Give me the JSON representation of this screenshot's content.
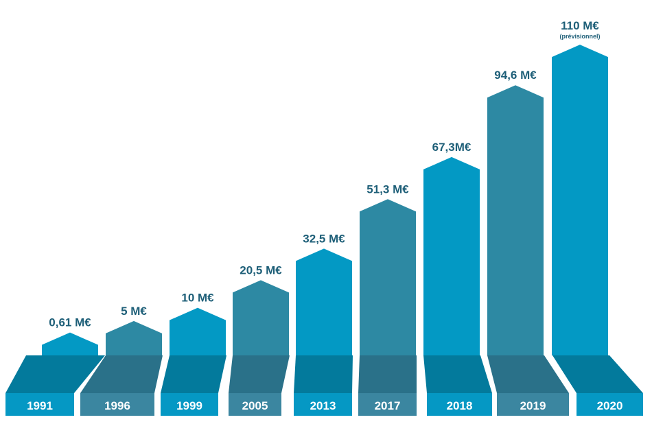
{
  "chart_data": {
    "type": "bar",
    "categories": [
      "1991",
      "1996",
      "1999",
      "2005",
      "2013",
      "2017",
      "2018",
      "2019",
      "2020"
    ],
    "values": [
      0.61,
      5,
      10,
      20.5,
      32.5,
      51.3,
      67.3,
      94.6,
      110
    ],
    "value_labels": [
      "0,61  M€",
      "5 M€",
      "10 M€",
      "20,5 M€",
      "32,5 M€",
      "51,3 M€",
      "67,3M€",
      "94,6 M€",
      "110 M€"
    ],
    "notes": [
      "",
      "",
      "",
      "",
      "",
      "",
      "",
      "",
      "(prévisionnel)"
    ],
    "title": "",
    "xlabel": "",
    "ylabel": "",
    "grid": false,
    "colors": {
      "bright": "#0399c4",
      "muted": "#2d89a3",
      "base_bright": "#037a9c",
      "base_muted": "#2a7189",
      "plate_bright": "#0598c4",
      "plate_muted": "#3b86a0",
      "label": "#1e5f78"
    }
  }
}
